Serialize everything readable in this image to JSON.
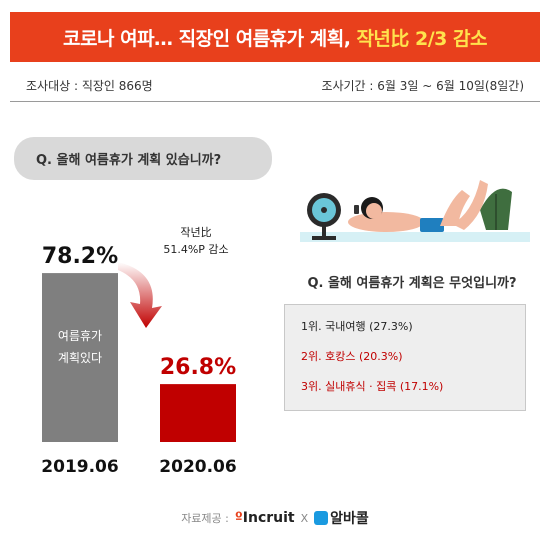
{
  "header": {
    "title_main": "코로나 여파… 직장인 여름휴가 계획,",
    "title_highlight": "작년比 2/3 감소",
    "colors": {
      "title_bg": "#e8401c",
      "highlight": "#ffe34d"
    }
  },
  "meta": {
    "subject": "조사대상 : 직장인 866명",
    "period": "조사기간 : 6월 3일 ~ 6월 10일(8일간)"
  },
  "question1": "Q. 올해 여름휴가 계획 있습니까?",
  "chart_data": {
    "type": "bar",
    "categories": [
      "2019.06",
      "2020.06"
    ],
    "values": [
      78.2,
      26.8
    ],
    "value_labels": [
      "78.2%",
      "26.8%"
    ],
    "bar_colors": [
      "#7f7f7f",
      "#c00000"
    ],
    "value_label_colors": [
      "#111111",
      "#c00000"
    ],
    "inner_label_lines": [
      "여름휴가",
      "계획있다"
    ],
    "annotation_lines": [
      "작년比",
      "51.4%P 감소"
    ],
    "arrow": "curved-down-right",
    "ylim": [
      0,
      100
    ],
    "grid": false,
    "legend": "none"
  },
  "question2": "Q. 올해 여름휴가 계획은 무엇입니까?",
  "ranking": [
    {
      "text": "1위. 국내여행 (27.3%)",
      "color": "#222222"
    },
    {
      "text": "2위. 호캉스 (20.3%)",
      "color": "#c00000"
    },
    {
      "text": "3위. 실내휴식 · 집콕 (17.1%)",
      "color": "#c00000"
    }
  ],
  "footer": {
    "source_label": "자료제공 :",
    "incruit": "Incruit",
    "cross": "X",
    "albamon": "알바콜"
  }
}
